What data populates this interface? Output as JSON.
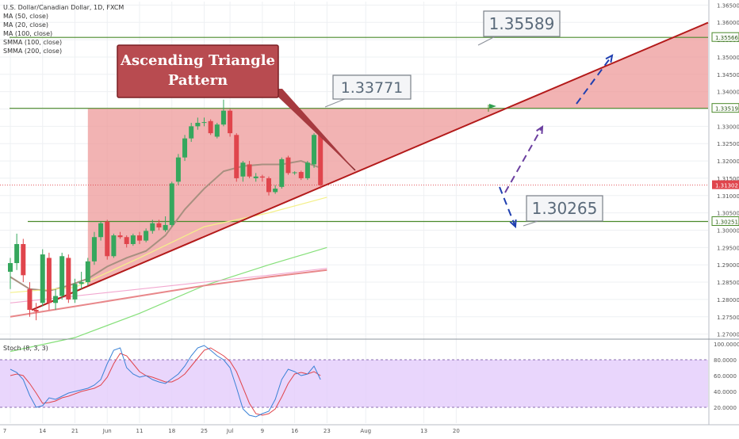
{
  "header": {
    "symbol_title": "U.S. Dollar/Canadian Dollar, 1D, FXCM",
    "indicators": [
      "MA (50, close)",
      "MA (20, close)",
      "MA (100, close)",
      "SMMA (100, close)",
      "SMMA (200, close)"
    ]
  },
  "annotations": {
    "pattern_label": "Ascending Triangle\nPattern",
    "callout_top": "1.35589",
    "callout_high": "1.33771",
    "callout_low": "1.30265"
  },
  "stoch_label": "Stoch (8, 3, 3)",
  "chart_data": {
    "type": "candlestick",
    "title": "U.S. Dollar/Canadian Dollar, 1D, FXCM",
    "ylim": [
      1.269,
      1.366
    ],
    "y_ticks": [
      "1.36500",
      "1.36000",
      "1.35500",
      "1.35000",
      "1.34500",
      "1.34000",
      "1.33500",
      "1.33000",
      "1.32500",
      "1.32000",
      "1.31500",
      "1.31000",
      "1.30500",
      "1.30000",
      "1.29500",
      "1.29000",
      "1.28500",
      "1.28000",
      "1.27500",
      "1.27000"
    ],
    "x_ticks": [
      {
        "label": "7",
        "idx": 0
      },
      {
        "label": "14",
        "idx": 5
      },
      {
        "label": "21",
        "idx": 10
      },
      {
        "label": "Jun",
        "idx": 15
      },
      {
        "label": "11",
        "idx": 20
      },
      {
        "label": "18",
        "idx": 25
      },
      {
        "label": "25",
        "idx": 30
      },
      {
        "label": "Jul",
        "idx": 34
      },
      {
        "label": "9",
        "idx": 39
      },
      {
        "label": "16",
        "idx": 44
      },
      {
        "label": "23",
        "idx": 49
      },
      {
        "label": "Aug",
        "idx": 55
      },
      {
        "label": "13",
        "idx": 64
      },
      {
        "label": "20",
        "idx": 69
      }
    ],
    "candles": [
      {
        "o": 1.288,
        "h": 1.292,
        "l": 1.283,
        "c": 1.2905
      },
      {
        "o": 1.2905,
        "h": 1.299,
        "l": 1.2885,
        "c": 1.296
      },
      {
        "o": 1.296,
        "h": 1.2975,
        "l": 1.285,
        "c": 1.287
      },
      {
        "o": 1.283,
        "h": 1.285,
        "l": 1.275,
        "c": 1.277
      },
      {
        "o": 1.277,
        "h": 1.279,
        "l": 1.274,
        "c": 1.2765
      },
      {
        "o": 1.279,
        "h": 1.2945,
        "l": 1.278,
        "c": 1.293
      },
      {
        "o": 1.292,
        "h": 1.2935,
        "l": 1.277,
        "c": 1.279
      },
      {
        "o": 1.279,
        "h": 1.283,
        "l": 1.277,
        "c": 1.281
      },
      {
        "o": 1.281,
        "h": 1.2935,
        "l": 1.28,
        "c": 1.2925
      },
      {
        "o": 1.292,
        "h": 1.293,
        "l": 1.279,
        "c": 1.28
      },
      {
        "o": 1.28,
        "h": 1.286,
        "l": 1.279,
        "c": 1.2845
      },
      {
        "o": 1.2845,
        "h": 1.288,
        "l": 1.283,
        "c": 1.285
      },
      {
        "o": 1.285,
        "h": 1.292,
        "l": 1.284,
        "c": 1.291
      },
      {
        "o": 1.291,
        "h": 1.2995,
        "l": 1.29,
        "c": 1.298
      },
      {
        "o": 1.298,
        "h": 1.3025,
        "l": 1.297,
        "c": 1.302
      },
      {
        "o": 1.3025,
        "h": 1.303,
        "l": 1.2915,
        "c": 1.2925
      },
      {
        "o": 1.2925,
        "h": 1.299,
        "l": 1.292,
        "c": 1.2985
      },
      {
        "o": 1.2985,
        "h": 1.2995,
        "l": 1.2975,
        "c": 1.298
      },
      {
        "o": 1.298,
        "h": 1.2985,
        "l": 1.295,
        "c": 1.296
      },
      {
        "o": 1.296,
        "h": 1.299,
        "l": 1.2955,
        "c": 1.2985
      },
      {
        "o": 1.2985,
        "h": 1.2995,
        "l": 1.296,
        "c": 1.297
      },
      {
        "o": 1.297,
        "h": 1.3005,
        "l": 1.2965,
        "c": 1.2998
      },
      {
        "o": 1.2998,
        "h": 1.303,
        "l": 1.299,
        "c": 1.302
      },
      {
        "o": 1.302,
        "h": 1.303,
        "l": 1.3,
        "c": 1.3008
      },
      {
        "o": 1.3,
        "h": 1.304,
        "l": 1.2995,
        "c": 1.3015
      },
      {
        "o": 1.3015,
        "h": 1.314,
        "l": 1.301,
        "c": 1.3135
      },
      {
        "o": 1.314,
        "h": 1.322,
        "l": 1.313,
        "c": 1.321
      },
      {
        "o": 1.321,
        "h": 1.3275,
        "l": 1.32,
        "c": 1.3265
      },
      {
        "o": 1.3265,
        "h": 1.331,
        "l": 1.3255,
        "c": 1.33
      },
      {
        "o": 1.33,
        "h": 1.3325,
        "l": 1.329,
        "c": 1.331
      },
      {
        "o": 1.331,
        "h": 1.3325,
        "l": 1.33,
        "c": 1.3312
      },
      {
        "o": 1.3315,
        "h": 1.332,
        "l": 1.3275,
        "c": 1.328
      },
      {
        "o": 1.327,
        "h": 1.331,
        "l": 1.3265,
        "c": 1.3305
      },
      {
        "o": 1.3305,
        "h": 1.3377,
        "l": 1.33,
        "c": 1.3345
      },
      {
        "o": 1.3345,
        "h": 1.335,
        "l": 1.327,
        "c": 1.328
      },
      {
        "o": 1.3275,
        "h": 1.328,
        "l": 1.314,
        "c": 1.315
      },
      {
        "o": 1.3155,
        "h": 1.32,
        "l": 1.314,
        "c": 1.3195
      },
      {
        "o": 1.319,
        "h": 1.32,
        "l": 1.315,
        "c": 1.3155
      },
      {
        "o": 1.315,
        "h": 1.3165,
        "l": 1.314,
        "c": 1.3155
      },
      {
        "o": 1.3155,
        "h": 1.316,
        "l": 1.314,
        "c": 1.3152
      },
      {
        "o": 1.315,
        "h": 1.3155,
        "l": 1.31,
        "c": 1.311
      },
      {
        "o": 1.311,
        "h": 1.313,
        "l": 1.3105,
        "c": 1.312
      },
      {
        "o": 1.3125,
        "h": 1.321,
        "l": 1.312,
        "c": 1.3205
      },
      {
        "o": 1.321,
        "h": 1.3215,
        "l": 1.316,
        "c": 1.3165
      },
      {
        "o": 1.3165,
        "h": 1.317,
        "l": 1.316,
        "c": 1.3167
      },
      {
        "o": 1.3168,
        "h": 1.3172,
        "l": 1.3145,
        "c": 1.315
      },
      {
        "o": 1.315,
        "h": 1.32,
        "l": 1.3145,
        "c": 1.3195
      },
      {
        "o": 1.319,
        "h": 1.328,
        "l": 1.318,
        "c": 1.3275
      },
      {
        "o": 1.3275,
        "h": 1.328,
        "l": 1.312,
        "c": 1.313
      }
    ],
    "horizontal_levels": [
      {
        "value": 1.35566,
        "label": "1.35566",
        "color": "#4a8a2a"
      },
      {
        "value": 1.33519,
        "label": "1.33519",
        "color": "#4a8a2a"
      },
      {
        "value": 1.30251,
        "label": "1.30251",
        "color": "#4a8a2a"
      }
    ],
    "last_price": {
      "value": 1.31302,
      "label": "1.31302",
      "color": "#e0454c"
    },
    "trendline": {
      "from": {
        "idx": -8,
        "value": 1.268
      },
      "to": {
        "idx": 74,
        "value": 1.333
      },
      "color": "#b31a1a"
    },
    "triangle_fill": {
      "start_idx": 12,
      "color": "#ee9a9a"
    },
    "stoch": {
      "label": "Stoch (8, 3, 3)",
      "levels": [
        80,
        20
      ],
      "y_ticks": [
        "100.0000",
        "80.0000",
        "60.0000",
        "40.0000",
        "20.0000"
      ],
      "k": [
        68,
        64,
        55,
        35,
        20,
        22,
        32,
        30,
        34,
        38,
        40,
        42,
        44,
        48,
        55,
        75,
        92,
        95,
        70,
        62,
        58,
        60,
        55,
        52,
        50,
        56,
        62,
        72,
        85,
        95,
        98,
        92,
        85,
        80,
        70,
        45,
        18,
        10,
        8,
        12,
        15,
        30,
        55,
        68,
        65,
        60,
        62,
        72,
        55
      ],
      "d": [
        60,
        62,
        60,
        50,
        38,
        25,
        26,
        28,
        32,
        34,
        37,
        40,
        42,
        44,
        48,
        58,
        75,
        88,
        85,
        75,
        65,
        60,
        58,
        55,
        52,
        52,
        56,
        62,
        72,
        82,
        92,
        95,
        90,
        85,
        78,
        65,
        45,
        25,
        12,
        10,
        12,
        18,
        33,
        50,
        62,
        64,
        62,
        65,
        60
      ],
      "k_color": "#3b82d6",
      "d_color": "#e0454c"
    },
    "moving_averages": [
      {
        "name": "MA (20, close)",
        "color": "#a89080",
        "points": [
          [
            0,
            1.2865
          ],
          [
            3,
            1.283
          ],
          [
            6,
            1.2825
          ],
          [
            9,
            1.284
          ],
          [
            12,
            1.286
          ],
          [
            15,
            1.2895
          ],
          [
            18,
            1.292
          ],
          [
            21,
            1.294
          ],
          [
            24,
            1.2985
          ],
          [
            27,
            1.306
          ],
          [
            30,
            1.312
          ],
          [
            33,
            1.317
          ],
          [
            36,
            1.3185
          ],
          [
            39,
            1.319
          ],
          [
            42,
            1.319
          ],
          [
            45,
            1.32
          ],
          [
            48,
            1.318
          ]
        ]
      },
      {
        "name": "MA (50, close)",
        "color": "#f4f08a",
        "points": [
          [
            0,
            1.282
          ],
          [
            10,
            1.2835
          ],
          [
            20,
            1.292
          ],
          [
            30,
            1.301
          ],
          [
            40,
            1.305
          ],
          [
            49,
            1.3095
          ]
        ]
      },
      {
        "name": "MA (100, close)",
        "color": "#86e07a",
        "points": [
          [
            0,
            1.265
          ],
          [
            10,
            1.269
          ],
          [
            20,
            1.276
          ],
          [
            30,
            1.284
          ],
          [
            40,
            1.29
          ],
          [
            49,
            1.295
          ]
        ]
      },
      {
        "name": "SMMA (100, close)",
        "color": "#f2a8d0",
        "points": [
          [
            0,
            1.279
          ],
          [
            10,
            1.281
          ],
          [
            20,
            1.283
          ],
          [
            30,
            1.285
          ],
          [
            40,
            1.287
          ],
          [
            49,
            1.289
          ]
        ]
      },
      {
        "name": "SMMA (200, close)",
        "color": "#e8878a",
        "points": [
          [
            0,
            1.275
          ],
          [
            10,
            1.278
          ],
          [
            20,
            1.281
          ],
          [
            30,
            1.284
          ],
          [
            40,
            1.2865
          ],
          [
            49,
            1.2885
          ]
        ]
      }
    ]
  }
}
